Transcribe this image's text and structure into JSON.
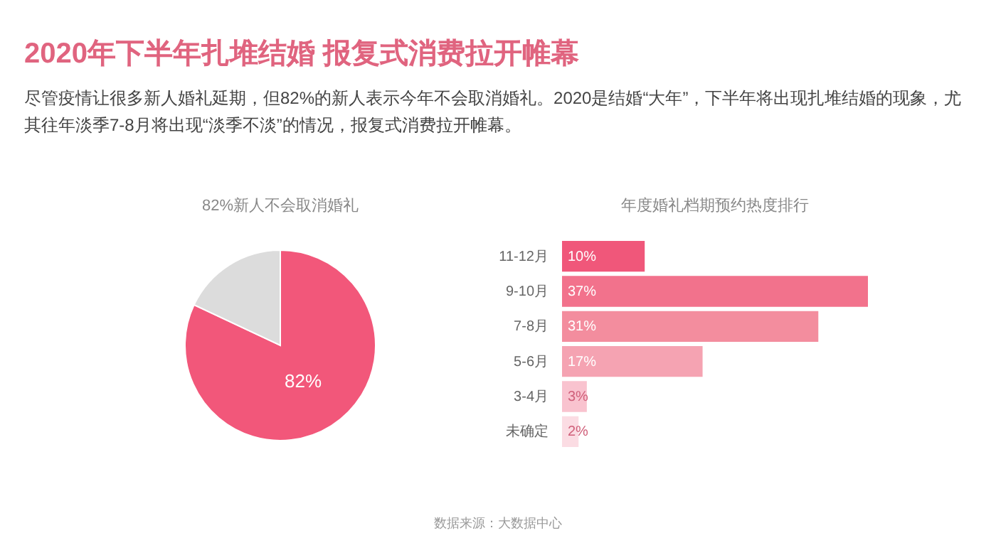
{
  "chart_data": [
    {
      "type": "other",
      "title": "2020年下半年扎堆结婚 报复式消费拉开帷幕",
      "subtitle": "尽管疫情让很多新人婚礼延期，但82%的新人表示今年不会取消婚礼。2020是结婚“大年”，下半年将出现扎堆结婚的现象，尤其往年淡季7-8月将出现“淡季不淡”的情况，报复式消费拉开帷幕。",
      "annotations": [
        "数据来源：大数据中心"
      ]
    },
    {
      "type": "pie",
      "title": "82%新人不会取消婚礼",
      "categories": [
        null,
        null
      ],
      "values": [
        82,
        18
      ],
      "colors": [
        "#f2577a",
        "#dcdcdc"
      ],
      "value_labels": [
        "82%",
        null
      ]
    },
    {
      "type": "bar",
      "orientation": "horizontal",
      "title": "年度婚礼档期预约热度排行",
      "categories": [
        "11-12月",
        "9-10月",
        "7-8月",
        "5-6月",
        "3-4月",
        "未确定"
      ],
      "values": [
        10,
        37,
        31,
        17,
        3,
        2
      ],
      "colors": [
        "#f0577a",
        "#f2728c",
        "#f38d9e",
        "#f5a3b2",
        "#f9c3cf",
        "#fbdce3"
      ],
      "value_labels": [
        "10%",
        "37%",
        "31%",
        "17%",
        "3%",
        "2%"
      ]
    }
  ]
}
